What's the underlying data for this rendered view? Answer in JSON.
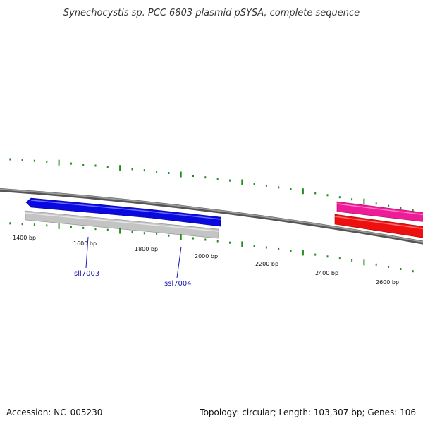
{
  "title": "Synechocystis sp. PCC 6803 plasmid pSYSA, complete sequence",
  "footer": {
    "accession": "Accession: NC_005230",
    "summary": "Topology: circular; Length: 103,307 bp; Genes: 106"
  },
  "colors": {
    "backbone": "#808080",
    "tick": "#228b22",
    "gene_forward": "#1010ee",
    "gene_reverse": "#c8c8c8",
    "feature_pink": "#ee1c96",
    "feature_red": "#ee1010",
    "label": "#1a1aaa"
  },
  "ticks": {
    "labels": [
      "1400 bp",
      "1600 bp",
      "1800 bp",
      "2000 bp",
      "2200 bp",
      "2400 bp",
      "2600 bp"
    ]
  },
  "genes": [
    {
      "name": "sll7003",
      "strand": "reverse"
    },
    {
      "name": "ssl7004",
      "strand": "forward"
    }
  ]
}
